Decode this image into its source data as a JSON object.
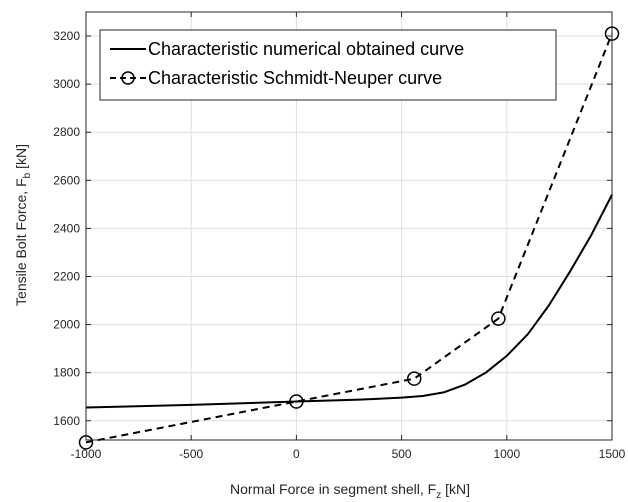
{
  "chart_data": {
    "type": "line",
    "xlabel": {
      "main": "Normal Force in segment shell, F",
      "sub": "z",
      "unit": " [kN]"
    },
    "ylabel": {
      "main": "Tensile Bolt Force, F",
      "sub": "b",
      "unit": " [kN]"
    },
    "xlim": [
      -1000,
      1500
    ],
    "ylim": [
      1520,
      3300
    ],
    "xticks": [
      -1000,
      -500,
      0,
      500,
      1000,
      1500
    ],
    "yticks": [
      1600,
      1800,
      2000,
      2200,
      2400,
      2600,
      2800,
      3000,
      3200
    ],
    "grid": true,
    "legend_position": "top-left",
    "series": [
      {
        "name": "Characteristic numerical obtained curve",
        "style": "solid",
        "marker": "none",
        "color": "#000000",
        "x": [
          -1000,
          -500,
          0,
          300,
          500,
          600,
          700,
          800,
          900,
          1000,
          1100,
          1200,
          1300,
          1400,
          1500
        ],
        "y": [
          1655,
          1666,
          1680,
          1688,
          1696,
          1703,
          1718,
          1750,
          1800,
          1870,
          1960,
          2080,
          2220,
          2370,
          2540
        ]
      },
      {
        "name": "Characteristic Schmidt-Neuper curve",
        "style": "dashed",
        "marker": "circle",
        "color": "#000000",
        "x": [
          -1000,
          0,
          560,
          960,
          1500
        ],
        "y": [
          1510,
          1680,
          1775,
          2025,
          3210
        ]
      }
    ]
  }
}
